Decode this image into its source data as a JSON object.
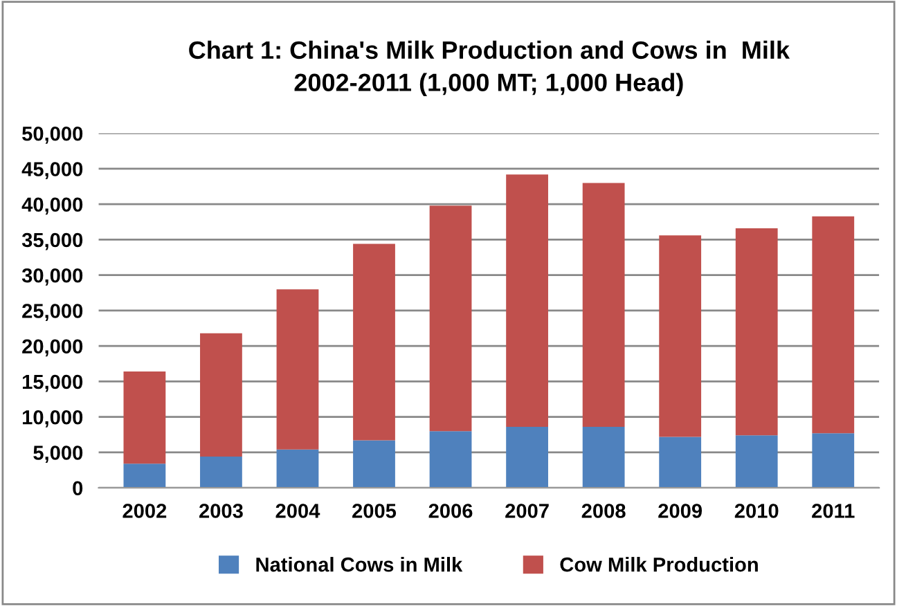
{
  "chart_data": {
    "type": "bar",
    "title": "Chart 1: China's Milk Production and Cows in  Milk\n2002-2011 (1,000 MT; 1,000 Head)",
    "categories": [
      "2002",
      "2003",
      "2004",
      "2005",
      "2006",
      "2007",
      "2008",
      "2009",
      "2010",
      "2011"
    ],
    "stacked": true,
    "series": [
      {
        "name": "National Cows in Milk",
        "color": "#4f81bd",
        "values": [
          3400,
          4400,
          5400,
          6700,
          8000,
          8600,
          8600,
          7200,
          7400,
          7700
        ]
      },
      {
        "name": "Cow Milk Production",
        "color": "#c0504d",
        "values": [
          13000,
          17400,
          22600,
          27700,
          31800,
          35600,
          34400,
          28400,
          29200,
          30600
        ]
      }
    ],
    "ylim": [
      0,
      50000
    ],
    "yticks": [
      {
        "value": 0,
        "label": "0"
      },
      {
        "value": 5000,
        "label": "5,000"
      },
      {
        "value": 10000,
        "label": "10,000"
      },
      {
        "value": 15000,
        "label": "15,000"
      },
      {
        "value": 20000,
        "label": "20,000"
      },
      {
        "value": 25000,
        "label": "25,000"
      },
      {
        "value": 30000,
        "label": "30,000"
      },
      {
        "value": 35000,
        "label": "35,000"
      },
      {
        "value": 40000,
        "label": "40,000"
      },
      {
        "value": 45000,
        "label": "45,000"
      },
      {
        "value": 50000,
        "label": "50,000"
      }
    ],
    "grid": "y",
    "legend": "bottom"
  }
}
